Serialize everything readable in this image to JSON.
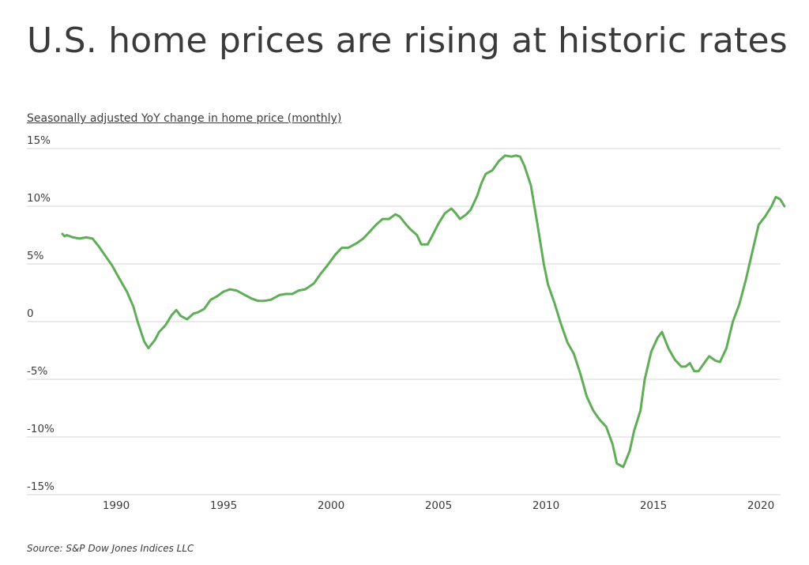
{
  "title": "U.S. home prices are rising at historic rates",
  "subtitle": "Seasonally adjusted YoY change in home price (monthly)",
  "source": "Source:  S&P Dow Jones Indices LLC",
  "chart_data": {
    "type": "line",
    "title": "U.S. home prices are rising at historic rates",
    "ylabel": "Seasonally adjusted YoY change in home price (monthly)",
    "xlabel": "",
    "xlim": [
      1987.0,
      2021.0
    ],
    "ylim": [
      -15,
      15
    ],
    "y_ticks": [
      {
        "value": 15,
        "label": "15%"
      },
      {
        "value": 10,
        "label": "10%"
      },
      {
        "value": 5,
        "label": "5%"
      },
      {
        "value": 0,
        "label": "0"
      },
      {
        "value": -5,
        "label": "-5%"
      },
      {
        "value": -10,
        "label": "-10%"
      },
      {
        "value": -15,
        "label": "-15%"
      }
    ],
    "x_ticks": [
      {
        "value": 1990,
        "label": "1990"
      },
      {
        "value": 1995,
        "label": "1995"
      },
      {
        "value": 2000,
        "label": "2000"
      },
      {
        "value": 2005,
        "label": "2005"
      },
      {
        "value": 2010,
        "label": "2010"
      },
      {
        "value": 2015,
        "label": "2015"
      },
      {
        "value": 2020,
        "label": "2020"
      }
    ],
    "grid": "horizontal",
    "line_color": "#5fae57",
    "grid_color": "#d4d4d4",
    "series": [
      {
        "points": [
          [
            1987.5,
            7.6
          ],
          [
            1987.6,
            7.4
          ],
          [
            1987.7,
            7.5
          ],
          [
            1988.0,
            7.3
          ],
          [
            1988.3,
            7.2
          ],
          [
            1988.6,
            7.3
          ],
          [
            1988.9,
            7.2
          ],
          [
            1989.2,
            6.5
          ],
          [
            1989.5,
            5.7
          ],
          [
            1989.8,
            4.9
          ],
          [
            1990.1,
            3.9
          ],
          [
            1990.5,
            2.6
          ],
          [
            1990.8,
            1.3
          ],
          [
            1991.0,
            0.0
          ],
          [
            1991.3,
            -1.7
          ],
          [
            1991.5,
            -2.3
          ],
          [
            1991.8,
            -1.6
          ],
          [
            1992.0,
            -0.9
          ],
          [
            1992.3,
            -0.3
          ],
          [
            1992.6,
            0.6
          ],
          [
            1992.8,
            1.0
          ],
          [
            1993.0,
            0.5
          ],
          [
            1993.3,
            0.2
          ],
          [
            1993.6,
            0.7
          ],
          [
            1993.8,
            0.8
          ],
          [
            1994.1,
            1.1
          ],
          [
            1994.4,
            1.9
          ],
          [
            1994.7,
            2.2
          ],
          [
            1995.0,
            2.6
          ],
          [
            1995.3,
            2.8
          ],
          [
            1995.6,
            2.7
          ],
          [
            1996.0,
            2.3
          ],
          [
            1996.3,
            2.0
          ],
          [
            1996.6,
            1.8
          ],
          [
            1996.9,
            1.8
          ],
          [
            1997.2,
            1.9
          ],
          [
            1997.6,
            2.3
          ],
          [
            1997.9,
            2.4
          ],
          [
            1998.2,
            2.4
          ],
          [
            1998.5,
            2.7
          ],
          [
            1998.8,
            2.8
          ],
          [
            1999.2,
            3.3
          ],
          [
            1999.5,
            4.1
          ],
          [
            1999.8,
            4.8
          ],
          [
            2000.2,
            5.8
          ],
          [
            2000.5,
            6.4
          ],
          [
            2000.8,
            6.4
          ],
          [
            2001.2,
            6.8
          ],
          [
            2001.5,
            7.2
          ],
          [
            2001.8,
            7.8
          ],
          [
            2002.1,
            8.4
          ],
          [
            2002.4,
            8.9
          ],
          [
            2002.7,
            8.9
          ],
          [
            2003.0,
            9.3
          ],
          [
            2003.2,
            9.1
          ],
          [
            2003.5,
            8.4
          ],
          [
            2003.7,
            8.0
          ],
          [
            2004.0,
            7.5
          ],
          [
            2004.2,
            6.7
          ],
          [
            2004.5,
            6.7
          ],
          [
            2004.7,
            7.4
          ],
          [
            2005.0,
            8.5
          ],
          [
            2005.3,
            9.4
          ],
          [
            2005.6,
            9.8
          ],
          [
            2005.8,
            9.4
          ],
          [
            2006.0,
            8.9
          ],
          [
            2006.3,
            9.3
          ],
          [
            2006.5,
            9.7
          ],
          [
            2006.8,
            10.9
          ],
          [
            2007.0,
            12.0
          ],
          [
            2007.2,
            12.8
          ],
          [
            2007.5,
            13.1
          ],
          [
            2007.8,
            13.9
          ],
          [
            2008.1,
            14.4
          ],
          [
            2008.4,
            14.3
          ],
          [
            2008.6,
            14.4
          ],
          [
            2008.8,
            14.3
          ],
          [
            2009.0,
            13.5
          ],
          [
            2009.3,
            11.8
          ],
          [
            2009.6,
            8.5
          ],
          [
            2009.9,
            5.0
          ],
          [
            2010.1,
            3.2
          ],
          [
            2010.4,
            1.6
          ],
          [
            2010.7,
            -0.2
          ],
          [
            2011.0,
            -1.8
          ],
          [
            2011.3,
            -2.8
          ],
          [
            2011.6,
            -4.5
          ],
          [
            2011.9,
            -6.5
          ],
          [
            2012.2,
            -7.7
          ],
          [
            2012.5,
            -8.5
          ],
          [
            2012.8,
            -9.1
          ],
          [
            2013.1,
            -10.6
          ],
          [
            2013.3,
            -12.3
          ],
          [
            2013.6,
            -12.6
          ],
          [
            2013.9,
            -11.2
          ],
          [
            2014.1,
            -9.5
          ],
          [
            2014.4,
            -7.7
          ],
          [
            2014.6,
            -5.0
          ],
          [
            2014.9,
            -2.6
          ],
          [
            2015.2,
            -1.4
          ],
          [
            2015.4,
            -0.9
          ],
          [
            2015.7,
            -2.3
          ],
          [
            2016.0,
            -3.3
          ],
          [
            2016.3,
            -3.9
          ],
          [
            2016.5,
            -3.9
          ],
          [
            2016.7,
            -3.6
          ],
          [
            2016.9,
            -4.3
          ],
          [
            2017.1,
            -4.3
          ],
          [
            2017.4,
            -3.5
          ],
          [
            2017.6,
            -3.0
          ],
          [
            2017.9,
            -3.4
          ],
          [
            2018.1,
            -3.5
          ],
          [
            2018.4,
            -2.3
          ],
          [
            2018.7,
            0.0
          ],
          [
            2019.0,
            1.5
          ],
          [
            2019.3,
            3.6
          ],
          [
            2019.6,
            6.0
          ],
          [
            2019.9,
            8.4
          ],
          [
            2020.2,
            9.1
          ],
          [
            2020.5,
            10.0
          ],
          [
            2020.7,
            10.8
          ],
          [
            2020.9,
            10.6
          ],
          [
            2021.1,
            10.0
          ]
        ]
      }
    ]
  }
}
